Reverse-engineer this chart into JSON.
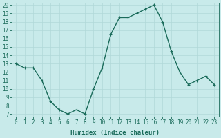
{
  "x": [
    0,
    1,
    2,
    3,
    4,
    5,
    6,
    7,
    8,
    9,
    10,
    11,
    12,
    13,
    14,
    15,
    16,
    17,
    18,
    19,
    20,
    21,
    22,
    23
  ],
  "y": [
    13,
    12.5,
    12.5,
    11,
    8.5,
    7.5,
    7,
    7.5,
    7,
    10,
    12.5,
    16.5,
    18.5,
    18.5,
    19,
    19.5,
    20,
    18,
    14.5,
    12,
    10.5,
    11,
    11.5,
    10.5
  ],
  "xlabel": "Humidex (Indice chaleur)",
  "ylim": [
    7,
    20
  ],
  "xlim": [
    0,
    23
  ],
  "yticks": [
    7,
    8,
    9,
    10,
    11,
    12,
    13,
    14,
    15,
    16,
    17,
    18,
    19,
    20
  ],
  "xticks": [
    0,
    1,
    2,
    3,
    4,
    5,
    6,
    7,
    8,
    9,
    10,
    11,
    12,
    13,
    14,
    15,
    16,
    17,
    18,
    19,
    20,
    21,
    22,
    23
  ],
  "line_color": "#1a6b5a",
  "marker_color": "#1a6b5a",
  "bg_color": "#c8eaea",
  "grid_color": "#b0d8d8",
  "tick_label_color": "#1a6b5a",
  "xlabel_color": "#1a6b5a",
  "xlabel_fontsize": 6.5,
  "tick_fontsize": 5.5,
  "line_width": 1.0,
  "marker_size": 2.5
}
